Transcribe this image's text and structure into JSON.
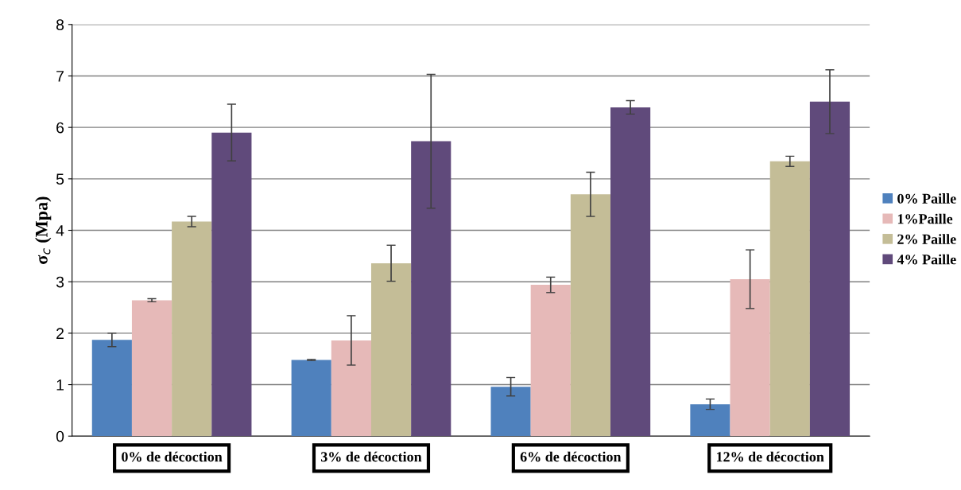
{
  "chart_data": {
    "type": "bar",
    "ylabel": "σ$_{c}$ (Mpa)",
    "categories": [
      "0% de décoction",
      "3% de décoction",
      "6% de décoction",
      "12% de décoction"
    ],
    "series": [
      {
        "name": "0% Paille",
        "color": "#4f81bd",
        "values": [
          1.87,
          1.48,
          0.96,
          0.62
        ],
        "errors": [
          0.13,
          0.01,
          0.18,
          0.1
        ]
      },
      {
        "name": "1%Paille",
        "color": "#e6b9b8",
        "values": [
          2.64,
          1.86,
          2.94,
          3.05
        ],
        "errors": [
          0.03,
          0.48,
          0.15,
          0.57
        ]
      },
      {
        "name": "2% Paille",
        "color": "#c4bd97",
        "values": [
          4.17,
          3.36,
          4.7,
          5.34
        ],
        "errors": [
          0.1,
          0.35,
          0.43,
          0.1
        ]
      },
      {
        "name": "4% Paille",
        "color": "#604a7b",
        "values": [
          5.9,
          5.73,
          6.39,
          6.5
        ],
        "errors": [
          0.55,
          1.3,
          0.13,
          0.62
        ]
      }
    ],
    "ylim": [
      0,
      8
    ],
    "yticks": [
      0,
      1,
      2,
      3,
      4,
      5,
      6,
      7,
      8
    ],
    "grid": "y",
    "legend": "right"
  }
}
